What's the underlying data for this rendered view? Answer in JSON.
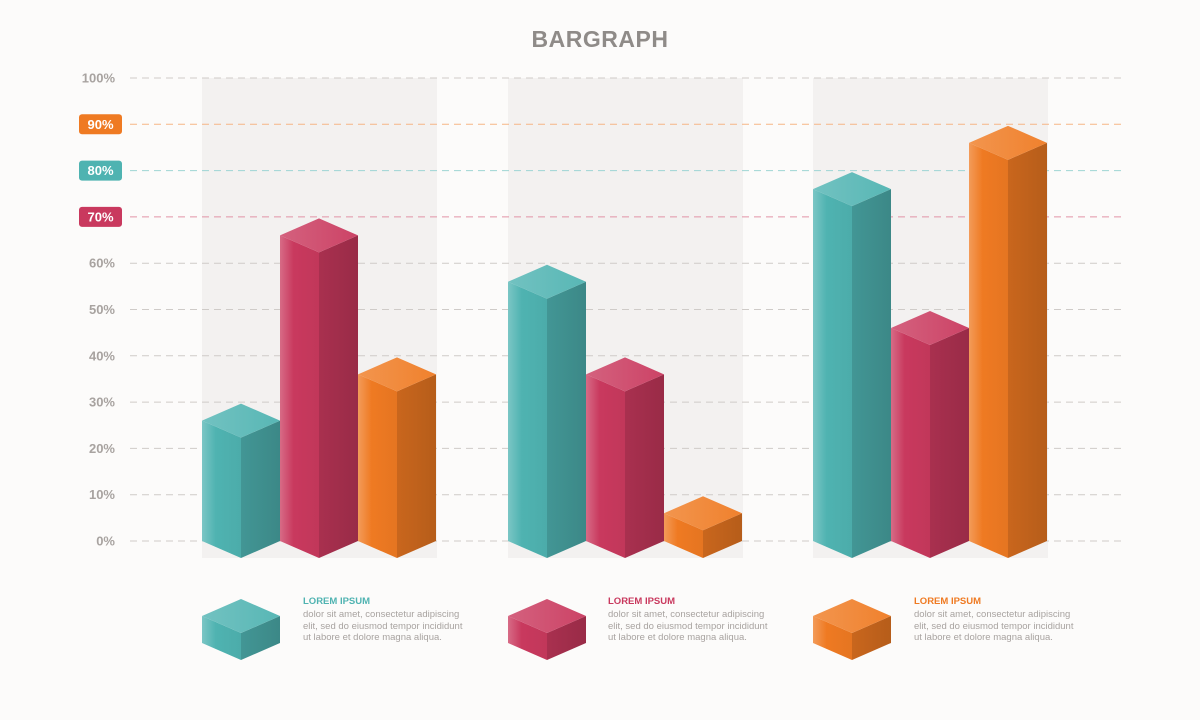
{
  "colors": {
    "teal": "#4fb3b1",
    "crimson": "#c9395e",
    "orange": "#ef7a22",
    "grid": "#cfcbc8",
    "tick": "#a8a3a0",
    "title": "#8f8b88",
    "panel": "#f3f1f0"
  },
  "chart_data": {
    "type": "bar",
    "title": "BARGRAPH",
    "categories": [
      "",
      "",
      ""
    ],
    "series": [
      {
        "name": "LOREM IPSUM",
        "color_key": "teal",
        "values": [
          26,
          56,
          76
        ]
      },
      {
        "name": "LOREM IPSUM",
        "color_key": "crimson",
        "values": [
          66,
          36,
          46
        ]
      },
      {
        "name": "LOREM IPSUM",
        "color_key": "orange",
        "values": [
          36,
          6,
          86
        ]
      }
    ],
    "ylim": [
      0,
      100
    ],
    "yticks": [
      "0%",
      "10%",
      "20%",
      "30%",
      "40%",
      "50%",
      "60%",
      "70%",
      "80%",
      "90%",
      "100%"
    ],
    "highlighted_ticks": [
      {
        "label": "90%",
        "color_key": "orange"
      },
      {
        "label": "80%",
        "color_key": "teal"
      },
      {
        "label": "70%",
        "color_key": "crimson"
      }
    ],
    "grid": true,
    "legend_position": "bottom"
  },
  "legend": [
    {
      "title": "LOREM IPSUM",
      "color_key": "teal",
      "text": "dolor sit amet, consectetur adipiscing elit, sed do eiusmod tempor incididunt ut labore et dolore magna aliqua."
    },
    {
      "title": "LOREM IPSUM",
      "color_key": "crimson",
      "text": "dolor sit amet, consectetur adipiscing elit, sed do eiusmod tempor incididunt ut labore et dolore magna aliqua."
    },
    {
      "title": "LOREM IPSUM",
      "color_key": "orange",
      "text": "dolor sit amet, consectetur adipiscing elit, sed do eiusmod tempor incididunt ut labore et dolore magna aliqua."
    }
  ]
}
